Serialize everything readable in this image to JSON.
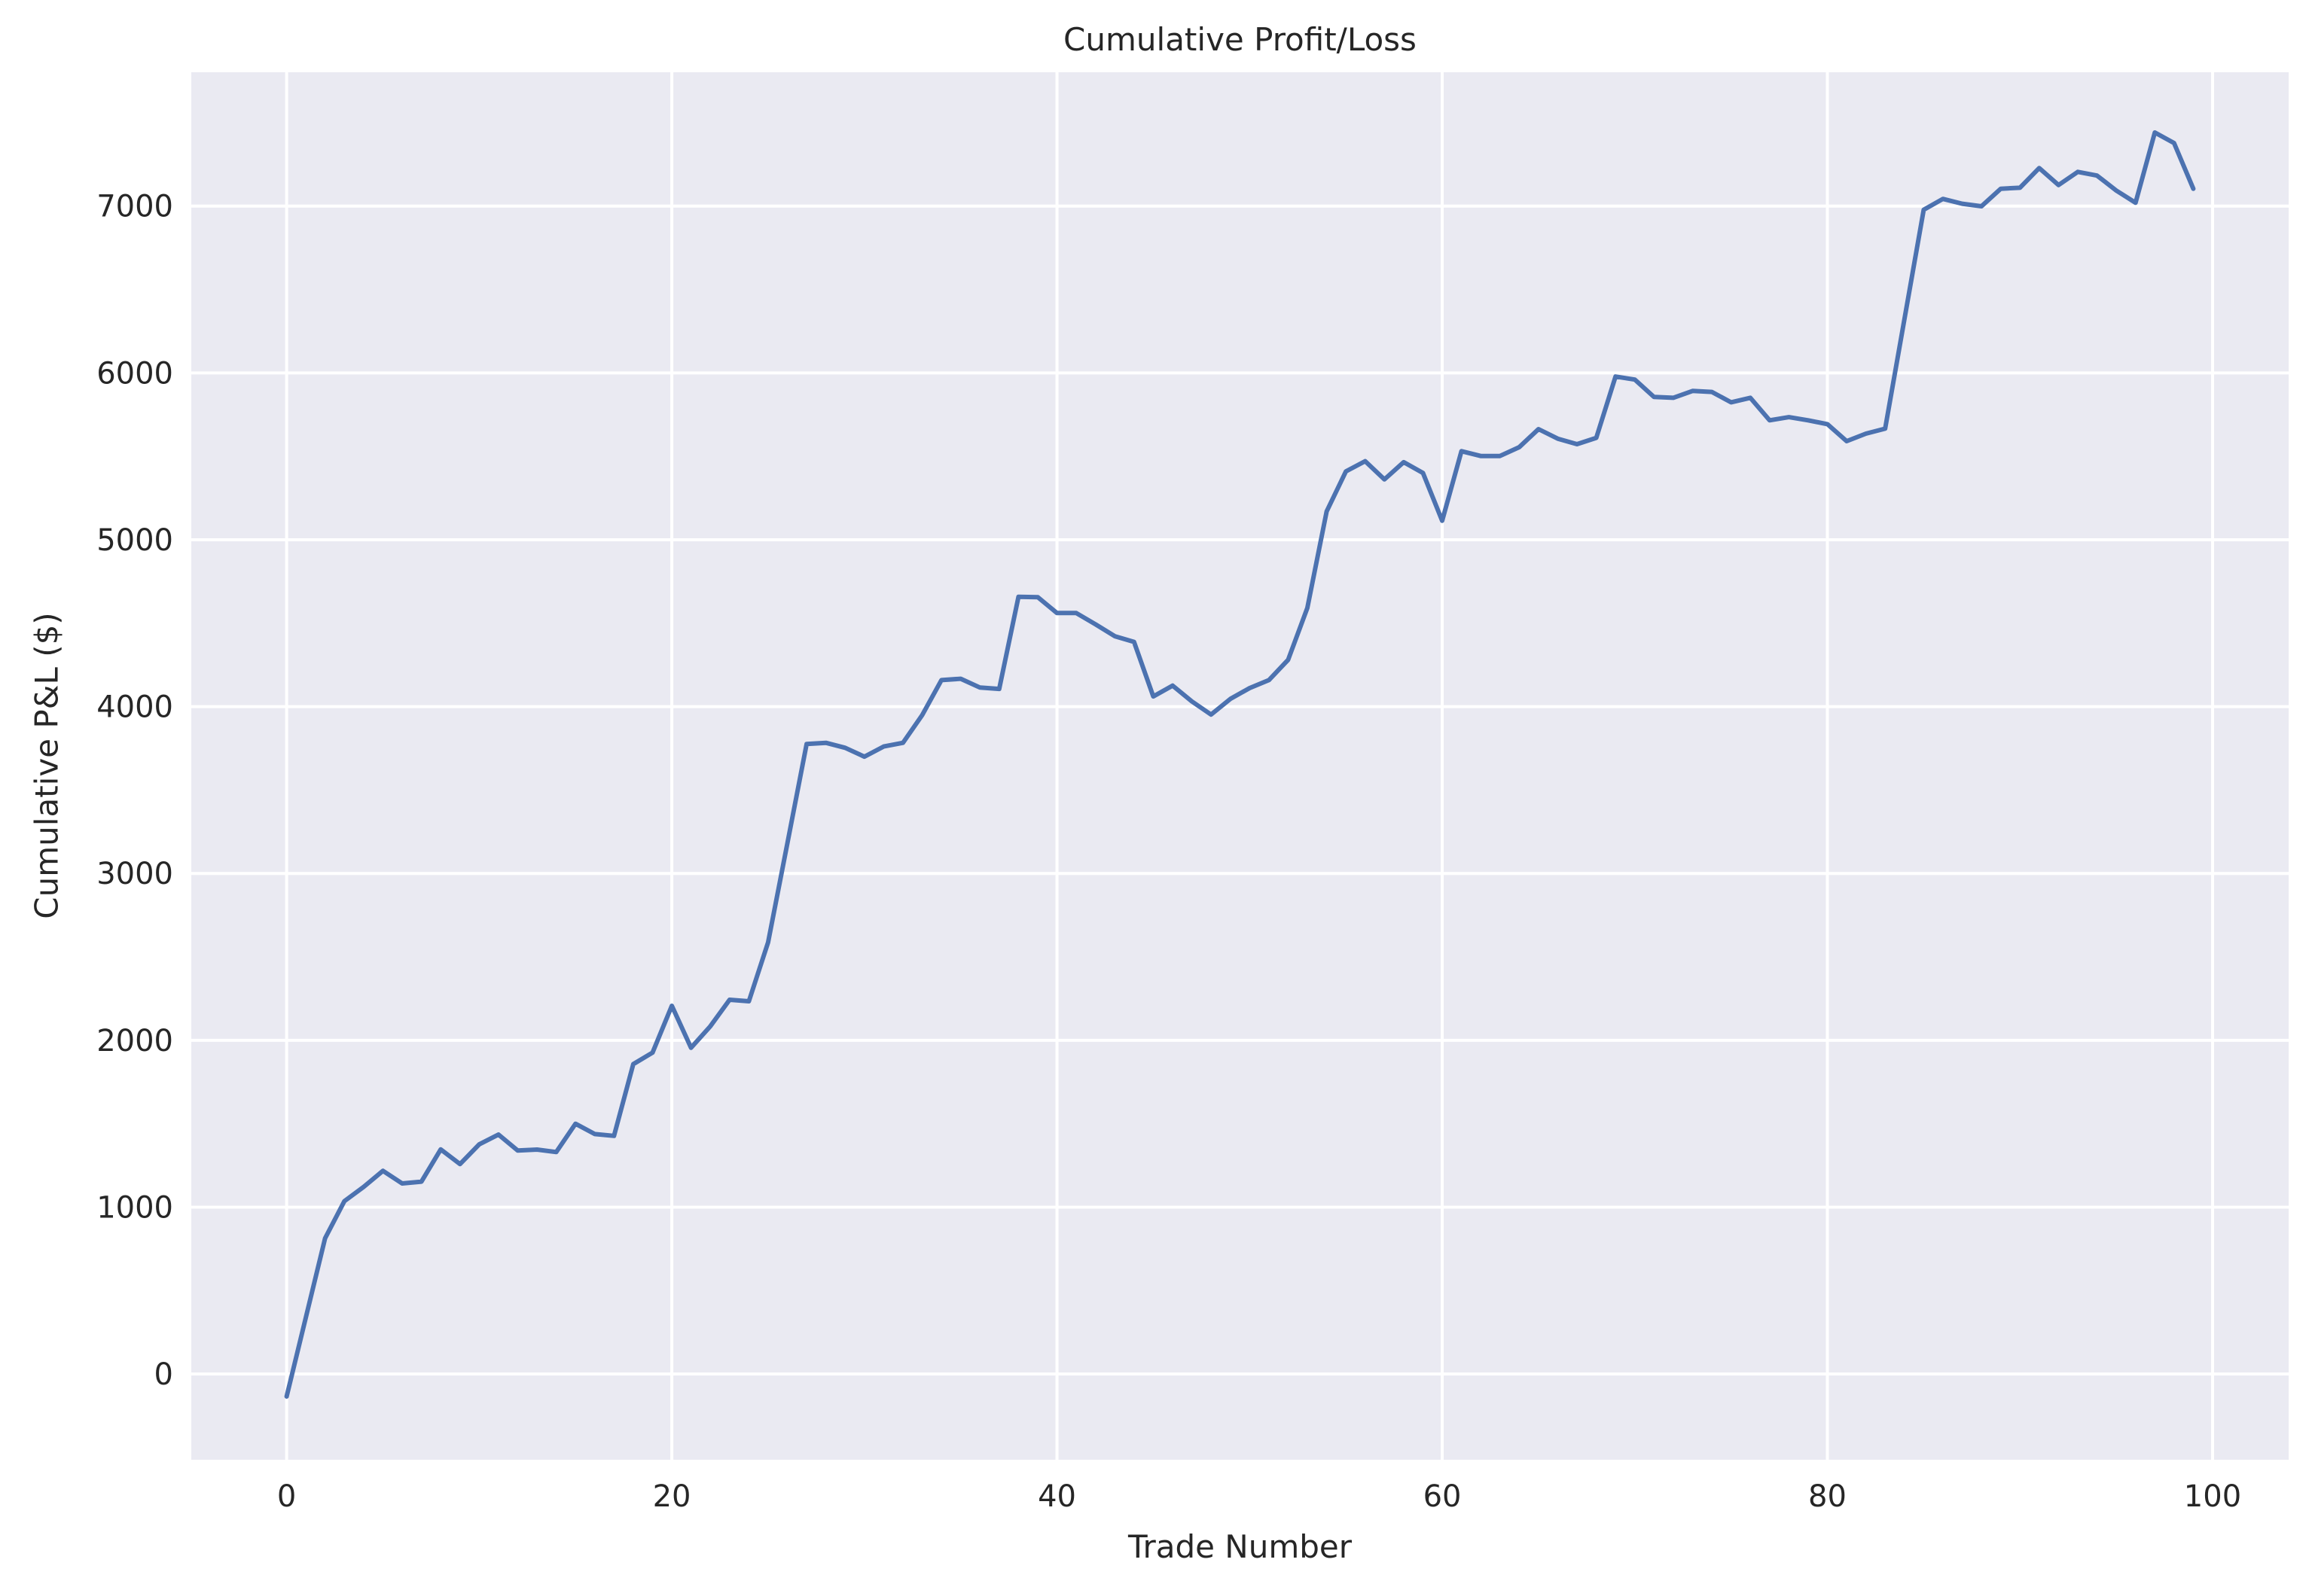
{
  "chart": {
    "title": "Cumulative Profit/Loss",
    "xlabel": "Trade Number",
    "ylabel": "Cumulative P&L ($)"
  },
  "colors": {
    "plot_background": "#EAEAF2",
    "grid": "#FFFFFF",
    "line": "#4C72B0",
    "text": "#262626"
  },
  "chart_data": {
    "type": "line",
    "title": "Cumulative Profit/Loss",
    "xlabel": "Trade Number",
    "ylabel": "Cumulative P&L ($)",
    "xlim": [
      -4.95,
      103.95
    ],
    "ylim": [
      -514,
      7802
    ],
    "xticks": [
      0,
      20,
      40,
      60,
      80,
      100
    ],
    "xtick_labels": [
      "0",
      "20",
      "40",
      "60",
      "80",
      "100"
    ],
    "yticks": [
      0,
      1000,
      2000,
      3000,
      4000,
      5000,
      6000,
      7000
    ],
    "ytick_labels": [
      "0",
      "1000",
      "2000",
      "3000",
      "4000",
      "5000",
      "6000",
      "7000"
    ],
    "grid": true,
    "legend": null,
    "series": [
      {
        "name": "Cumulative P&L",
        "color": "#4C72B0",
        "x_start": 0,
        "values": [
          -135,
          340,
          814,
          1036,
          1121,
          1218,
          1142,
          1153,
          1346,
          1258,
          1376,
          1435,
          1339,
          1345,
          1330,
          1500,
          1438,
          1427,
          1857,
          1926,
          2207,
          1955,
          2084,
          2243,
          2234,
          2587,
          3180,
          3776,
          3783,
          3753,
          3700,
          3761,
          3783,
          3949,
          4159,
          4167,
          4114,
          4106,
          4658,
          4656,
          4561,
          4561,
          4493,
          4422,
          4388,
          4061,
          4126,
          4031,
          3952,
          4046,
          4111,
          4159,
          4280,
          4592,
          5170,
          5410,
          5471,
          5362,
          5465,
          5400,
          5114,
          5531,
          5502,
          5502,
          5555,
          5663,
          5606,
          5573,
          5611,
          5978,
          5960,
          5856,
          5851,
          5892,
          5886,
          5824,
          5851,
          5716,
          5735,
          5716,
          5693,
          5591,
          5636,
          5666,
          6322,
          6978,
          7043,
          7014,
          6999,
          7104,
          7110,
          7228,
          7126,
          7205,
          7183,
          7093,
          7020,
          7441,
          7378,
          7104
        ]
      }
    ]
  }
}
